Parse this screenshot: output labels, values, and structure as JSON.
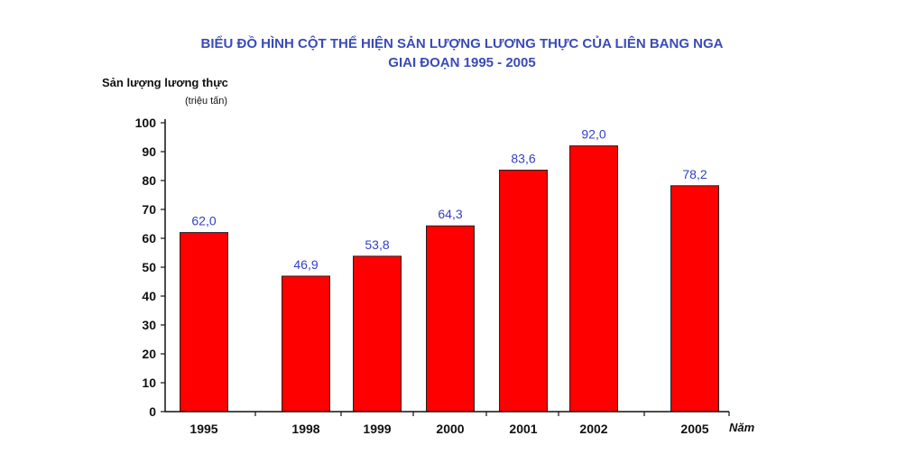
{
  "chart_data": {
    "type": "bar",
    "title_line1": "BIỂU ĐỒ HÌNH CỘT THỂ HIỆN SẢN LƯỢNG LƯƠNG THỰC CỦA LIÊN BANG NGA",
    "title_line2": "GIAI ĐOẠN 1995 - 2005",
    "ylabel": "Sản lượng lương thực",
    "yunit": "(triệu tấn)",
    "xlabel": "Năm",
    "categories": [
      "1995",
      "1998",
      "1999",
      "2000",
      "2001",
      "2002",
      "2005"
    ],
    "values": [
      62.0,
      46.9,
      53.8,
      64.3,
      83.6,
      92.0,
      78.2
    ],
    "value_labels": [
      "62,0",
      "46,9",
      "53,8",
      "64,3",
      "83,6",
      "92,0",
      "78,2"
    ],
    "ylim": [
      0,
      100
    ],
    "yticks": [
      0,
      10,
      20,
      30,
      40,
      50,
      60,
      70,
      80,
      90,
      100
    ],
    "bar_color": "#ff0000",
    "label_color": "#3340c8",
    "title_color": "#3a4bb8"
  }
}
